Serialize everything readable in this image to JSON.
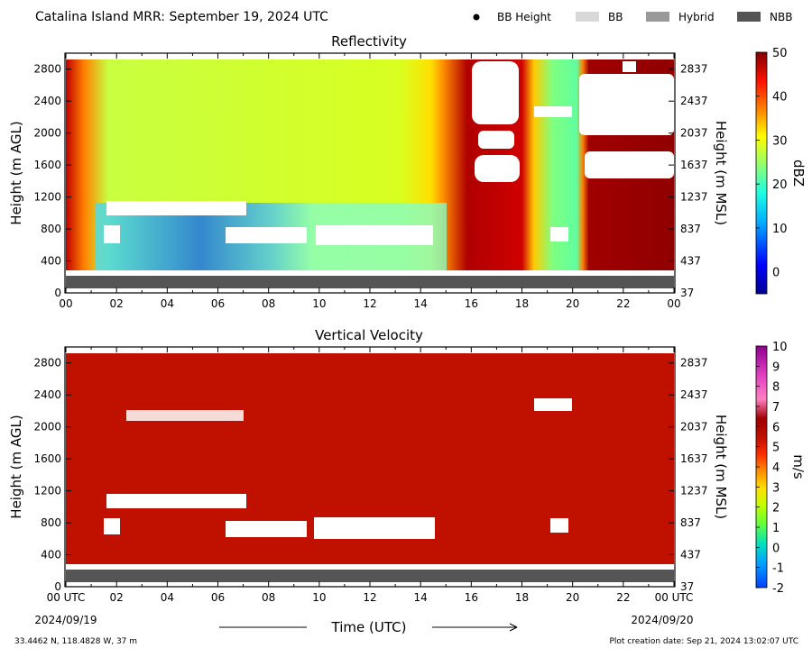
{
  "header": {
    "title": "Catalina Island MRR:  September 19, 2024 UTC",
    "legend": [
      {
        "label": "BB Height",
        "marker": "dot",
        "color": "#000000"
      },
      {
        "label": "BB",
        "marker": "box",
        "color": "#d8d8d8"
      },
      {
        "label": "Hybrid",
        "marker": "box",
        "color": "#999999"
      },
      {
        "label": "NBB",
        "marker": "box",
        "color": "#555555"
      }
    ]
  },
  "footer": {
    "coords": "33.4462 N, 118.4828 W, 37 m",
    "creation": "Plot creation date: Sep 21, 2024 13:02:07 UTC",
    "xlabel": "Time (UTC)",
    "start_date": "2024/09/19",
    "end_date": "2024/09/20"
  },
  "chart_data": [
    {
      "type": "heatmap",
      "title": "Reflectivity",
      "ylabel": "Height (m AGL)",
      "y2label": "Height (m MSL)",
      "colorbar_label": "dBZ",
      "colorbar_ticks": [
        "50",
        "40",
        "30",
        "20",
        "10",
        "0"
      ],
      "colorbar_range": [
        -5,
        50
      ],
      "x_ticks": [
        "00",
        "02",
        "04",
        "06",
        "08",
        "10",
        "12",
        "14",
        "16",
        "18",
        "20",
        "22",
        "00"
      ],
      "xlim": [
        0,
        24
      ],
      "y_ticks": [
        "0",
        "400",
        "800",
        "1200",
        "1600",
        "2000",
        "2400",
        "2800"
      ],
      "y2_ticks": [
        "37",
        "437",
        "837",
        "1237",
        "1637",
        "2037",
        "2437",
        "2837"
      ],
      "ylim": [
        0,
        3000
      ],
      "bright_band": "NBB",
      "colors": {
        "low": "#00008f",
        "mid": "#c8ff30",
        "high": "#8c0000"
      }
    },
    {
      "type": "heatmap",
      "title": "Vertical Velocity",
      "ylabel": "Height (m AGL)",
      "y2label": "Height (m MSL)",
      "colorbar_label": "m/s",
      "colorbar_ticks": [
        "10",
        "9",
        "8",
        "7",
        "6",
        "5",
        "4",
        "3",
        "2",
        "1",
        "0",
        "-1",
        "-2"
      ],
      "colorbar_range": [
        -2,
        10
      ],
      "x_ticks": [
        "00 UTC",
        "02",
        "04",
        "06",
        "08",
        "10",
        "12",
        "14",
        "16",
        "18",
        "20",
        "22",
        "00 UTC"
      ],
      "xlim": [
        0,
        24
      ],
      "y_ticks": [
        "0",
        "400",
        "800",
        "1200",
        "1600",
        "2000",
        "2400",
        "2800"
      ],
      "y2_ticks": [
        "37",
        "437",
        "837",
        "1237",
        "1637",
        "2037",
        "2437",
        "2837"
      ],
      "ylim": [
        0,
        3000
      ],
      "bright_band": "NBB",
      "dominant_value": 6,
      "colors": {
        "dominant": "#c01000"
      }
    }
  ]
}
